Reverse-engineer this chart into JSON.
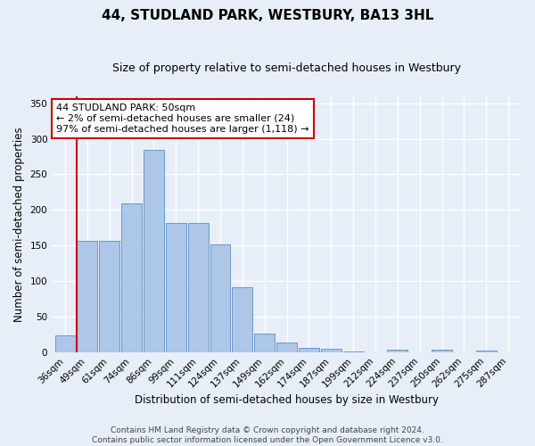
{
  "title": "44, STUDLAND PARK, WESTBURY, BA13 3HL",
  "subtitle": "Size of property relative to semi-detached houses in Westbury",
  "xlabel": "Distribution of semi-detached houses by size in Westbury",
  "ylabel": "Number of semi-detached properties",
  "categories": [
    "36sqm",
    "49sqm",
    "61sqm",
    "74sqm",
    "86sqm",
    "99sqm",
    "111sqm",
    "124sqm",
    "137sqm",
    "149sqm",
    "162sqm",
    "174sqm",
    "187sqm",
    "199sqm",
    "212sqm",
    "224sqm",
    "237sqm",
    "250sqm",
    "262sqm",
    "275sqm",
    "287sqm"
  ],
  "values": [
    23,
    157,
    157,
    209,
    284,
    182,
    182,
    152,
    91,
    26,
    13,
    6,
    5,
    1,
    0,
    3,
    0,
    4,
    0,
    2,
    0
  ],
  "bar_color": "#aec6e8",
  "bar_edge_color": "#5a8fc4",
  "highlight_line_color": "#cc0000",
  "highlight_bar_index": 1,
  "annotation_text": "44 STUDLAND PARK: 50sqm\n← 2% of semi-detached houses are smaller (24)\n97% of semi-detached houses are larger (1,118) →",
  "annotation_box_color": "#ffffff",
  "annotation_box_edge_color": "#cc0000",
  "footer_line1": "Contains HM Land Registry data © Crown copyright and database right 2024.",
  "footer_line2": "Contains public sector information licensed under the Open Government Licence v3.0.",
  "background_color": "#e8eef7",
  "plot_bg_color": "#e8eef7",
  "ylim": [
    0,
    360
  ],
  "yticks": [
    0,
    50,
    100,
    150,
    200,
    250,
    300,
    350
  ],
  "title_fontsize": 11,
  "subtitle_fontsize": 9,
  "axis_label_fontsize": 8.5,
  "tick_fontsize": 7.5,
  "annotation_fontsize": 8,
  "footer_fontsize": 6.5
}
